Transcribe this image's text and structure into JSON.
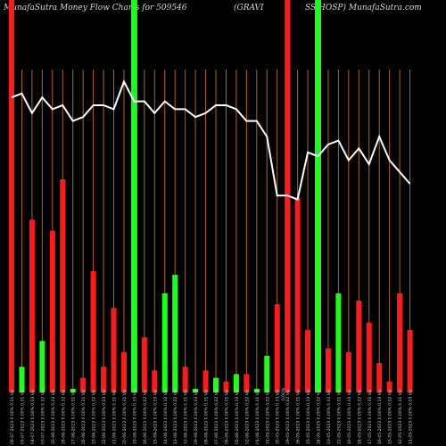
{
  "chart_data": {
    "type": "bar",
    "title_left": "MunafaSutra  Money Flow  Charts for 509546",
    "title_center": "(GRAVI",
    "title_right": "SS HOSP)  MunafaSutra.com",
    "x_axis_note": "0.00%",
    "ylim": [
      0,
      100
    ],
    "bars": [
      {
        "color": "red",
        "value": 100,
        "label": "06-07-2023 0.00% 0.31 Vol"
      },
      {
        "color": "green",
        "value": 7,
        "label": "05-07-2023 0.00% 0.31 Vol"
      },
      {
        "color": "red",
        "value": 47,
        "label": "04-07-2023 0.00% 0.33 Vol"
      },
      {
        "color": "green",
        "value": 14,
        "label": "03-07-2023 0.00% 0.32 Vol"
      },
      {
        "color": "red",
        "value": 44,
        "label": "30-06-2023 0.00% 0.33 Vol"
      },
      {
        "color": "red",
        "value": 58,
        "label": "28-06-2023 0.00% 0.32 Vol"
      },
      {
        "color": "green",
        "value": 1,
        "label": "27-06-2023 0.00% 0.31 Vol"
      },
      {
        "color": "red",
        "value": 4,
        "label": "26-06-2023 0.00% 0.31 Vol"
      },
      {
        "color": "red",
        "value": 33,
        "label": "23-06-2023 0.00% 0.32 Vol"
      },
      {
        "color": "red",
        "value": 7,
        "label": "22-06-2023 0.00% 0.33 Vol"
      },
      {
        "color": "red",
        "value": 23,
        "label": "21-06-2023 0.00% 0.31 Vol"
      },
      {
        "color": "red",
        "value": 11,
        "label": "20-06-2023 0.00% 0.31 Vol"
      },
      {
        "color": "green",
        "value": 100,
        "label": "19-06-2023 0.00% 0.33 Vol"
      },
      {
        "color": "red",
        "value": 15,
        "label": "16-06-2023 0.00% 0.32 Vol"
      },
      {
        "color": "red",
        "value": 6,
        "label": "15-06-2023 0.00% 0.33 Vol"
      },
      {
        "color": "green",
        "value": 27,
        "label": "14-06-2023 0.00% 0.32 Vol"
      },
      {
        "color": "green",
        "value": 32,
        "label": "13-06-2023 0.00% 0.32 Vol"
      },
      {
        "color": "red",
        "value": 7,
        "label": "12-06-2023 0.00% 0.31 Vol"
      },
      {
        "color": "green",
        "value": 1,
        "label": "09-06-2023 0.00% 0.33 Vol"
      },
      {
        "color": "red",
        "value": 6,
        "label": "08-06-2023 0.00% 0.31 Vol"
      },
      {
        "color": "green",
        "value": 4,
        "label": "07-06-2023 0.00% 0.32 Vol"
      },
      {
        "color": "red",
        "value": 3,
        "label": "06-06-2023 0.00% 0.31 Vol"
      },
      {
        "color": "green",
        "value": 5,
        "label": "05-06-2023 0.00% 0.33 Vol"
      },
      {
        "color": "red",
        "value": 5,
        "label": "02-06-2023 0.00% 0.32 Vol"
      },
      {
        "color": "green",
        "value": 1,
        "label": "01-06-2023 0.00% 0.31 Vol"
      },
      {
        "color": "green",
        "value": 10,
        "label": "31-05-2023 0.00% 0.32 Vol"
      },
      {
        "color": "red",
        "value": 24,
        "label": "30-05-2023 0.00% 0.33 Vol"
      },
      {
        "color": "red",
        "value": 100,
        "label": "29-05-2023 0.00% 0.32 Vol"
      },
      {
        "color": "red",
        "value": 53,
        "label": "26-05-2023 0.00% 0.31 Vol"
      },
      {
        "color": "red",
        "value": 17,
        "label": "25-05-2023 0.00% 0.33 Vol"
      },
      {
        "color": "green",
        "value": 100,
        "label": "24-05-2023 0.00% 0.32 Vol"
      },
      {
        "color": "red",
        "value": 12,
        "label": "23-05-2023 0.00% 0.32 Vol"
      },
      {
        "color": "green",
        "value": 27,
        "label": "22-05-2023 0.00% 0.31 Vol"
      },
      {
        "color": "red",
        "value": 11,
        "label": "19-05-2023 0.00% 0.33 Vol"
      },
      {
        "color": "red",
        "value": 25,
        "label": "18-05-2023 0.00% 0.32 Vol"
      },
      {
        "color": "red",
        "value": 19,
        "label": "17-05-2023 0.00% 0.31 Vol"
      },
      {
        "color": "red",
        "value": 8,
        "label": "16-05-2023 0.00% 0.33 Vol"
      },
      {
        "color": "red",
        "value": 3,
        "label": "15-05-2023 0.00% 0.32 Vol"
      },
      {
        "color": "red",
        "value": 27,
        "label": "12-05-2023 0.00% 0.31 Vol"
      },
      {
        "color": "red",
        "value": 17,
        "label": "11-05-2023 0.00% 0.33 Vol"
      }
    ],
    "line": {
      "color": "#ffffff",
      "values": [
        82,
        83,
        78,
        82,
        79,
        80,
        76,
        77,
        80,
        80,
        79,
        86,
        81,
        81,
        78,
        81,
        79,
        79,
        77,
        78,
        80,
        80,
        79,
        76,
        76,
        72,
        57,
        57,
        56,
        68,
        67,
        70,
        71,
        66,
        69,
        65,
        72,
        66,
        63,
        60
      ]
    }
  }
}
